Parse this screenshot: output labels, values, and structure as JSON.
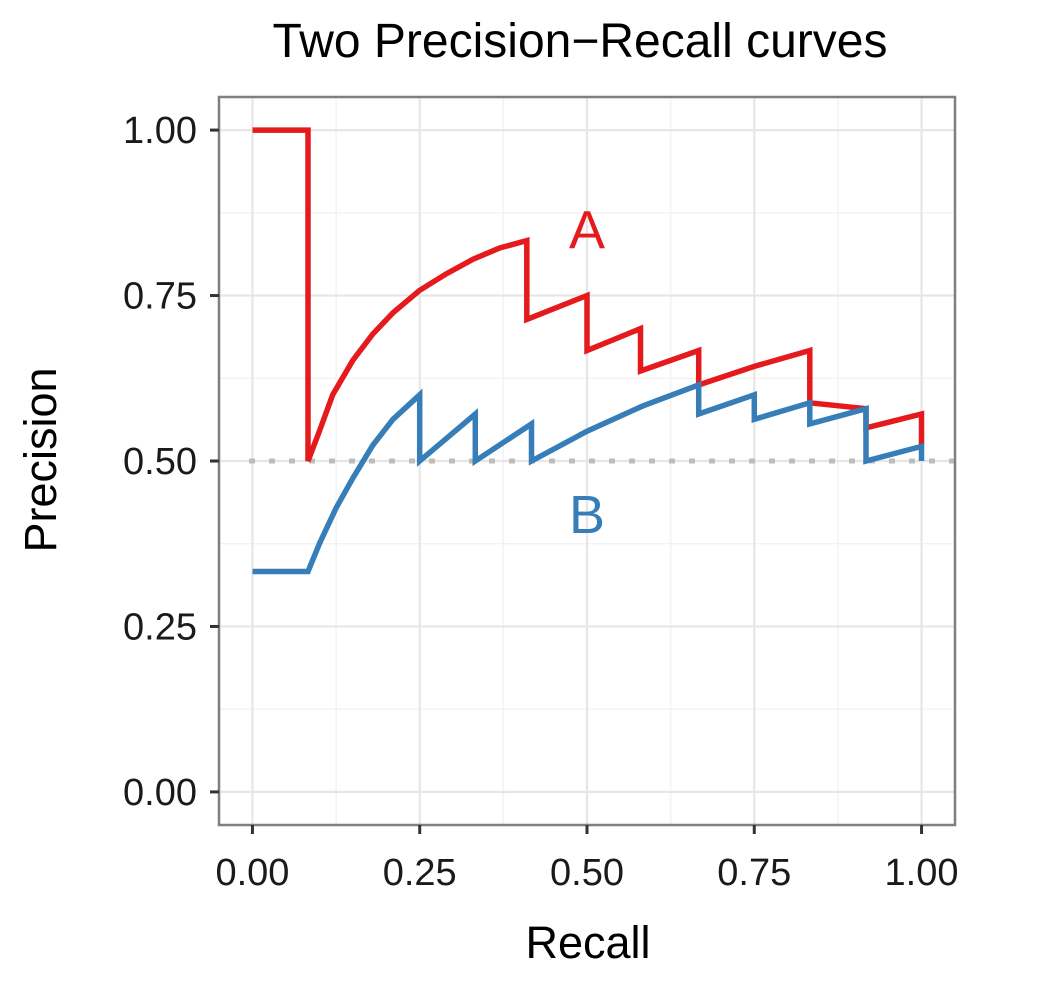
{
  "chart_data": {
    "type": "line",
    "title": "Two Precision−Recall curves",
    "xlabel": "Recall",
    "ylabel": "Precision",
    "xlim": [
      -0.05,
      1.05
    ],
    "ylim": [
      -0.05,
      1.05
    ],
    "x_ticks": [
      0,
      0.25,
      0.5,
      0.75,
      1
    ],
    "x_tick_labels": [
      "0.00",
      "0.25",
      "0.50",
      "0.75",
      "1.00"
    ],
    "y_ticks": [
      0,
      0.25,
      0.5,
      0.75,
      1
    ],
    "y_tick_labels": [
      "0.00",
      "0.25",
      "0.50",
      "0.75",
      "1.00"
    ],
    "grid": true,
    "legend": "none",
    "reference_line": {
      "y": 0.5,
      "style": "dotted",
      "color": "#bdbdbd"
    },
    "series": [
      {
        "name": "A",
        "color": "#e41a1c",
        "label_position": [
          0.5,
          0.85
        ],
        "x": [
          0.0,
          0.083,
          0.083,
          0.1,
          0.12,
          0.15,
          0.18,
          0.21,
          0.25,
          0.29,
          0.33,
          0.37,
          0.41,
          0.41,
          0.5,
          0.5,
          0.58,
          0.58,
          0.667,
          0.667,
          0.75,
          0.833,
          0.833,
          0.917,
          0.917,
          1.0,
          1.0
        ],
        "y": [
          1.0,
          1.0,
          0.5,
          0.545,
          0.6,
          0.652,
          0.692,
          0.724,
          0.758,
          0.783,
          0.805,
          0.822,
          0.833,
          0.714,
          0.75,
          0.667,
          0.7,
          0.636,
          0.667,
          0.615,
          0.643,
          0.667,
          0.588,
          0.579,
          0.55,
          0.571,
          0.524
        ]
      },
      {
        "name": "B",
        "color": "#377eb8",
        "label_position": [
          0.5,
          0.42
        ],
        "x": [
          0.0,
          0.083,
          0.1,
          0.125,
          0.15,
          0.18,
          0.21,
          0.25,
          0.25,
          0.333,
          0.333,
          0.417,
          0.417,
          0.5,
          0.583,
          0.667,
          0.667,
          0.75,
          0.75,
          0.833,
          0.833,
          0.917,
          0.917,
          1.0,
          1.0
        ],
        "y": [
          0.333,
          0.333,
          0.375,
          0.429,
          0.474,
          0.524,
          0.563,
          0.6,
          0.5,
          0.571,
          0.5,
          0.556,
          0.5,
          0.545,
          0.583,
          0.615,
          0.571,
          0.6,
          0.563,
          0.588,
          0.556,
          0.579,
          0.5,
          0.522,
          0.5
        ]
      }
    ]
  }
}
